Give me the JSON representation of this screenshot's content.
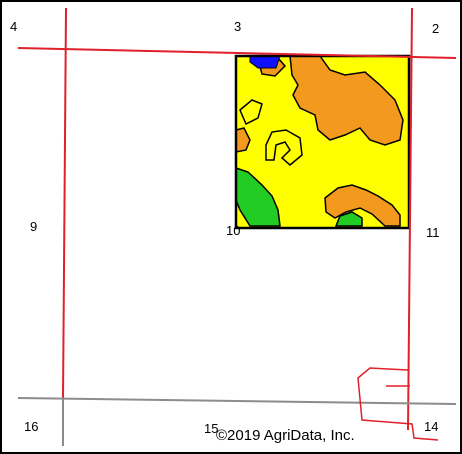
{
  "map": {
    "section_labels": {
      "s4": "4",
      "s3": "3",
      "s2": "2",
      "s9": "9",
      "s10": "10",
      "s11": "11",
      "s16": "16",
      "s15": "15",
      "s14": "14"
    },
    "copyright": "©2019 AgriData, Inc.",
    "colors": {
      "section_line": "#e0202a",
      "road_line": "#8c8c8c",
      "boundary": "#000000",
      "soil_yellow": "#ffff00",
      "soil_orange": "#f39a1e",
      "soil_green": "#22cc22",
      "soil_blue": "#1010ff",
      "background": "#ffffff"
    }
  }
}
